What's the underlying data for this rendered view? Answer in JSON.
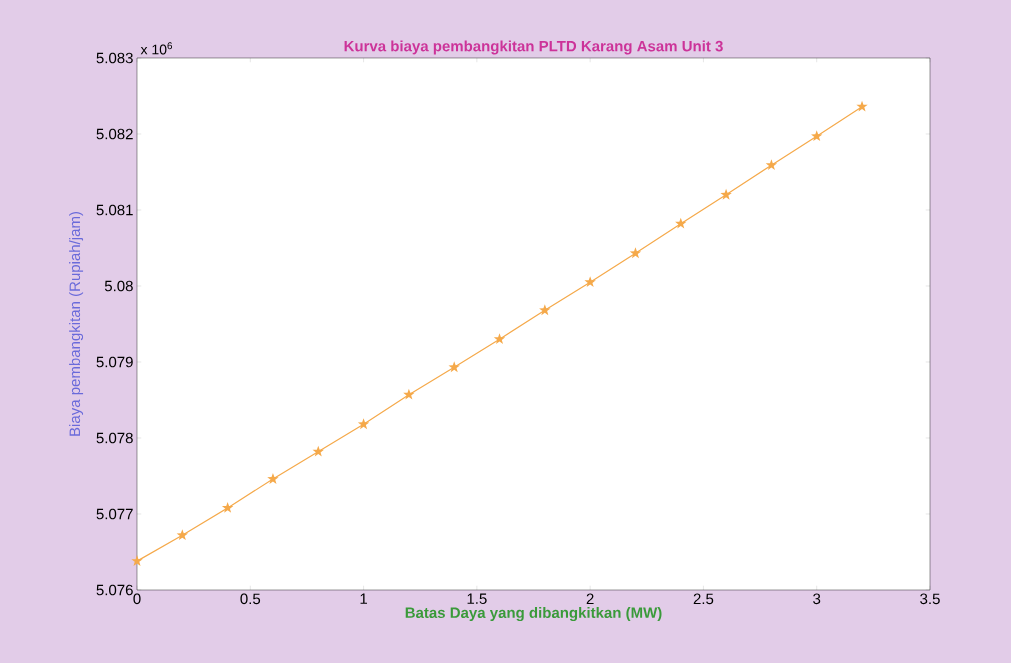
{
  "chart_data": {
    "type": "line",
    "title": "Kurva biaya pembangkitan PLTD Karang Asam Unit 3",
    "xlabel": "Batas Daya yang dibangkitkan (MW)",
    "ylabel": "Biaya pembangkitan (Rupiah/jam)",
    "annotations": [
      "x 10$^{6}$"
    ],
    "x": [
      0,
      0.2,
      0.4,
      0.6,
      0.8,
      1.0,
      1.2,
      1.4,
      1.6,
      1.8,
      2.0,
      2.2,
      2.4,
      2.6,
      2.8,
      3.0,
      3.2
    ],
    "series": [
      {
        "color": "#f5a94a",
        "values": [
          5.07638,
          5.07672,
          5.07708,
          5.07746,
          5.07782,
          5.07818,
          5.07857,
          5.07893,
          5.0793,
          5.07968,
          5.08005,
          5.08043,
          5.08082,
          5.0812,
          5.08159,
          5.08197,
          5.08236
        ]
      }
    ],
    "xlim": [
      0,
      3.5
    ],
    "xticks": [
      0,
      0.5,
      1,
      1.5,
      2,
      2.5,
      3,
      3.5
    ],
    "ylim": [
      5.076,
      5.083
    ],
    "yticks": [
      5.076,
      5.077,
      5.078,
      5.079,
      5.08,
      5.081,
      5.082,
      5.083
    ],
    "grid": false,
    "marker": "star",
    "line_style": "solid"
  }
}
